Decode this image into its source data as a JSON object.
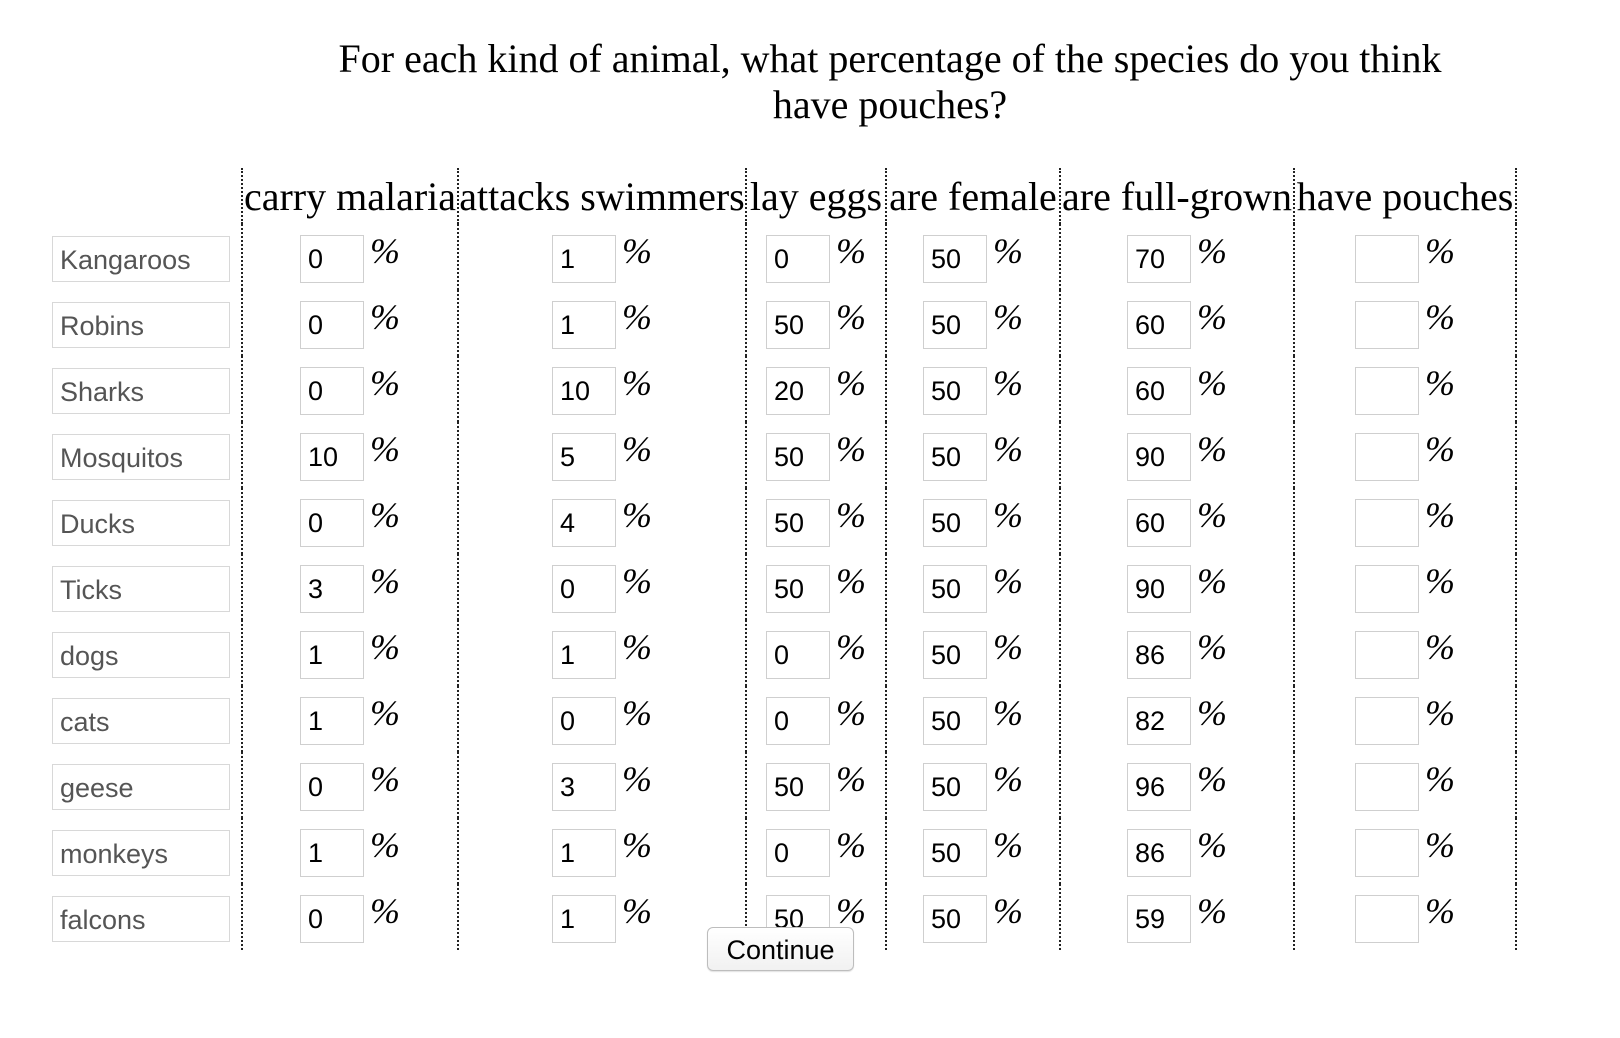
{
  "question": "For each kind of animal, what percentage of the species do you think have pouches?",
  "columns": [
    "carry malaria",
    "attacks swimmers",
    "lay eggs",
    "are female",
    "are full-grown",
    "have pouches"
  ],
  "percent_symbol": "%",
  "rows": [
    {
      "animal": "Kangaroos",
      "values": [
        "0",
        "1",
        "0",
        "50",
        "70",
        ""
      ]
    },
    {
      "animal": "Robins",
      "values": [
        "0",
        "1",
        "50",
        "50",
        "60",
        ""
      ]
    },
    {
      "animal": "Sharks",
      "values": [
        "0",
        "10",
        "20",
        "50",
        "60",
        ""
      ]
    },
    {
      "animal": "Mosquitos",
      "values": [
        "10",
        "5",
        "50",
        "50",
        "90",
        ""
      ]
    },
    {
      "animal": "Ducks",
      "values": [
        "0",
        "4",
        "50",
        "50",
        "60",
        ""
      ]
    },
    {
      "animal": "Ticks",
      "values": [
        "3",
        "0",
        "50",
        "50",
        "90",
        ""
      ]
    },
    {
      "animal": "dogs",
      "values": [
        "1",
        "1",
        "0",
        "50",
        "86",
        ""
      ]
    },
    {
      "animal": "cats",
      "values": [
        "1",
        "0",
        "0",
        "50",
        "82",
        ""
      ]
    },
    {
      "animal": "geese",
      "values": [
        "0",
        "3",
        "50",
        "50",
        "96",
        ""
      ]
    },
    {
      "animal": "monkeys",
      "values": [
        "1",
        "1",
        "0",
        "50",
        "86",
        ""
      ]
    },
    {
      "animal": "falcons",
      "values": [
        "0",
        "1",
        "50",
        "50",
        "59",
        ""
      ]
    }
  ],
  "continue_label": "Continue"
}
